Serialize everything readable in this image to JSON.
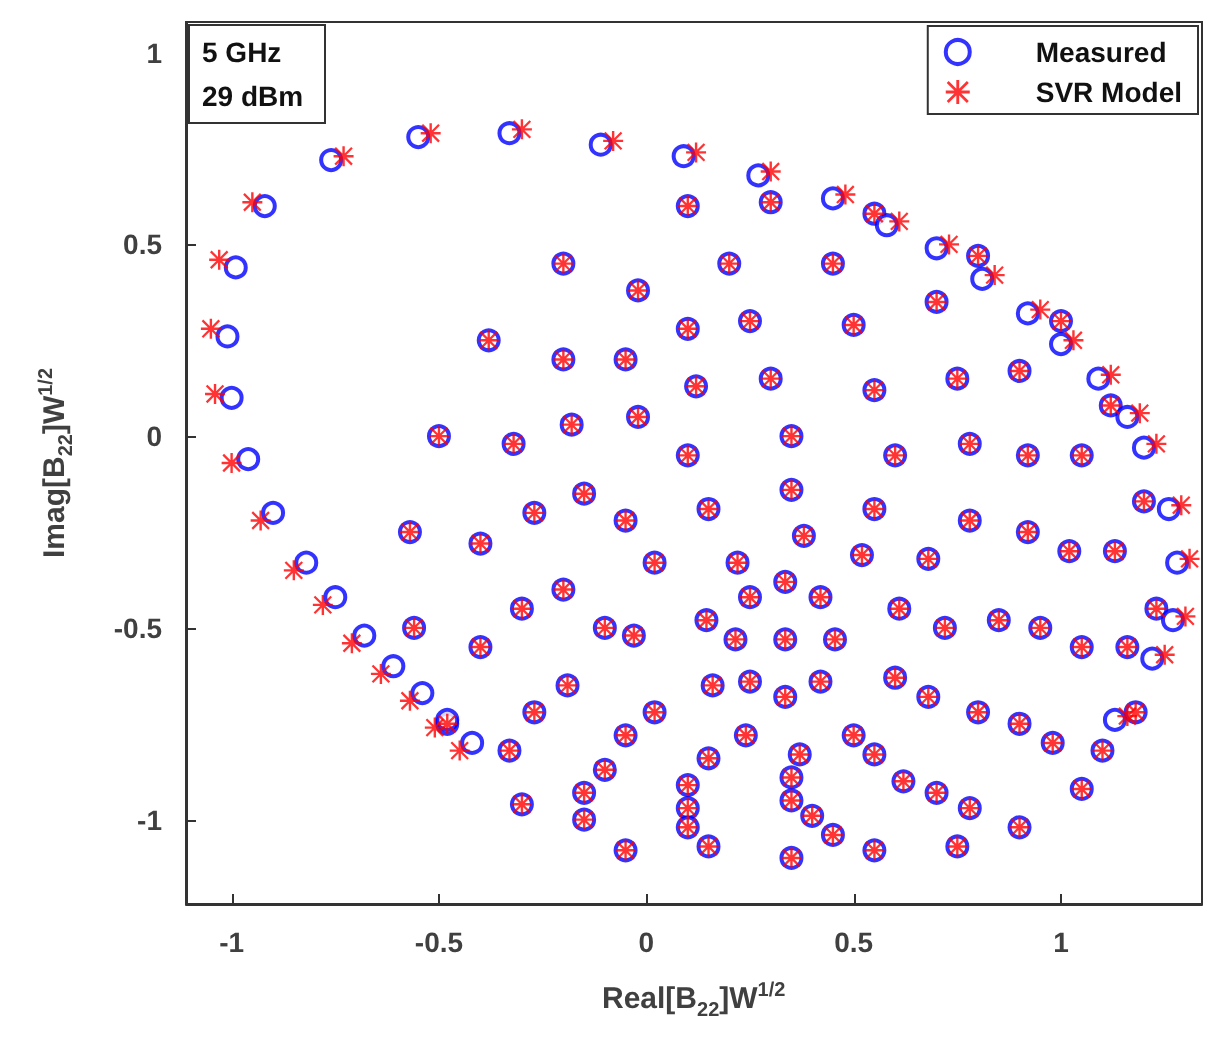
{
  "chart_data": {
    "type": "scatter",
    "xlabel": "Real[B$_{22}$]W$^{1/2}$",
    "ylabel": "Imag[B$_{22}$]W$^{1/2}$",
    "annotations": [
      "5 GHz",
      "29 dBm"
    ],
    "xlim": [
      -1.11,
      1.34
    ],
    "ylim": [
      -1.22,
      1.08
    ],
    "xticks": [
      -1,
      -0.5,
      0,
      0.5,
      1
    ],
    "yticks": [
      -1,
      -0.5,
      0,
      0.5,
      1
    ],
    "grid": false,
    "legend": "top right",
    "series": [
      {
        "name": "Measured",
        "color": "#0000ff",
        "marker": "circle",
        "x": [
          0.335,
          0.335,
          0.42,
          0.455,
          0.42,
          0.335,
          0.25,
          0.215,
          0.25,
          0.38,
          0.52,
          0.61,
          0.6,
          0.5,
          0.37,
          0.24,
          0.16,
          0.145,
          0.22,
          0.35,
          0.55,
          0.68,
          0.72,
          0.68,
          0.55,
          0.35,
          0.15,
          0.02,
          -0.03,
          0.02,
          0.15,
          0.35,
          0.6,
          0.78,
          0.85,
          0.8,
          0.62,
          0.35,
          0.1,
          -0.05,
          -0.1,
          -0.05,
          0.1,
          0.3,
          0.55,
          0.78,
          0.92,
          0.95,
          0.9,
          0.7,
          0.4,
          0.1,
          -0.1,
          -0.19,
          -0.2,
          -0.15,
          -0.02,
          0.12,
          0.25,
          0.5,
          0.75,
          0.92,
          1.02,
          1.05,
          0.98,
          0.78,
          0.45,
          0.1,
          -0.15,
          -0.27,
          -0.3,
          -0.27,
          -0.18,
          -0.05,
          0.1,
          0.2,
          0.45,
          0.7,
          0.9,
          1.05,
          1.13,
          1.16,
          1.1,
          0.9,
          0.55,
          0.15,
          -0.15,
          -0.33,
          -0.4,
          -0.4,
          -0.32,
          -0.2,
          -0.02,
          0.1,
          0.3,
          0.55,
          0.8,
          1.0,
          1.12,
          1.2,
          1.23,
          1.18,
          1.05,
          0.75,
          0.35,
          -0.05,
          -0.3,
          -0.48,
          -0.56,
          -0.57,
          -0.5,
          -0.38,
          -0.2,
          -0.11,
          0.09,
          0.27,
          0.45,
          0.58,
          0.7,
          0.81,
          0.92,
          1.0,
          1.09,
          1.16,
          1.2,
          1.26,
          1.28,
          1.27,
          1.22,
          1.13,
          -0.33,
          -0.55,
          -0.76,
          -0.92,
          -0.99,
          -1.01,
          -1.0,
          -0.96,
          -0.9,
          -0.82,
          -0.75,
          -0.68,
          -0.61,
          -0.54,
          -0.48,
          -0.42
        ],
        "values": [
          -0.53,
          -0.38,
          -0.42,
          -0.53,
          -0.64,
          -0.68,
          -0.64,
          -0.53,
          -0.42,
          -0.26,
          -0.31,
          -0.45,
          -0.63,
          -0.78,
          -0.83,
          -0.78,
          -0.65,
          -0.48,
          -0.33,
          -0.14,
          -0.19,
          -0.32,
          -0.5,
          -0.68,
          -0.83,
          -0.89,
          -0.84,
          -0.72,
          -0.52,
          -0.33,
          -0.19,
          0.0,
          -0.05,
          -0.22,
          -0.48,
          -0.72,
          -0.9,
          -0.95,
          -0.91,
          -0.78,
          -0.5,
          -0.22,
          -0.05,
          0.15,
          0.12,
          -0.02,
          -0.25,
          -0.5,
          -0.75,
          -0.93,
          -0.99,
          -0.97,
          -0.87,
          -0.65,
          -0.4,
          -0.15,
          0.05,
          0.13,
          0.3,
          0.29,
          0.15,
          -0.05,
          -0.3,
          -0.55,
          -0.8,
          -0.97,
          -1.04,
          -1.02,
          -0.93,
          -0.72,
          -0.45,
          -0.2,
          0.03,
          0.2,
          0.28,
          0.45,
          0.45,
          0.35,
          0.17,
          -0.05,
          -0.3,
          -0.55,
          -0.82,
          -1.02,
          -1.08,
          -1.07,
          -1.0,
          -0.82,
          -0.55,
          -0.28,
          -0.02,
          0.2,
          0.38,
          0.6,
          0.61,
          0.58,
          0.47,
          0.3,
          0.08,
          -0.17,
          -0.45,
          -0.72,
          -0.92,
          -1.07,
          -1.1,
          -1.08,
          -0.96,
          -0.75,
          -0.5,
          -0.25,
          0.0,
          0.25,
          0.45,
          0.76,
          0.73,
          0.68,
          0.62,
          0.55,
          0.49,
          0.41,
          0.32,
          0.24,
          0.15,
          0.05,
          -0.03,
          -0.19,
          -0.33,
          -0.48,
          -0.58,
          -0.74,
          0.79,
          0.78,
          0.72,
          0.6,
          0.44,
          0.26,
          0.1,
          -0.06,
          -0.2,
          -0.33,
          -0.42,
          -0.52,
          -0.6,
          -0.67,
          -0.74,
          -0.8
        ]
      },
      {
        "name": "SVR Model",
        "color": "#ff0000",
        "marker": "star",
        "x": [
          0.335,
          0.335,
          0.42,
          0.455,
          0.42,
          0.335,
          0.25,
          0.215,
          0.25,
          0.38,
          0.52,
          0.61,
          0.6,
          0.5,
          0.37,
          0.24,
          0.16,
          0.145,
          0.22,
          0.35,
          0.55,
          0.68,
          0.72,
          0.68,
          0.55,
          0.35,
          0.15,
          0.02,
          -0.03,
          0.02,
          0.15,
          0.35,
          0.6,
          0.78,
          0.85,
          0.8,
          0.62,
          0.35,
          0.1,
          -0.05,
          -0.1,
          -0.05,
          0.1,
          0.3,
          0.55,
          0.78,
          0.92,
          0.95,
          0.9,
          0.7,
          0.4,
          0.1,
          -0.1,
          -0.19,
          -0.2,
          -0.15,
          -0.02,
          0.12,
          0.25,
          0.5,
          0.75,
          0.92,
          1.02,
          1.05,
          0.98,
          0.78,
          0.45,
          0.1,
          -0.15,
          -0.27,
          -0.3,
          -0.27,
          -0.18,
          -0.05,
          0.1,
          0.2,
          0.45,
          0.7,
          0.9,
          1.05,
          1.13,
          1.16,
          1.1,
          0.9,
          0.55,
          0.15,
          -0.15,
          -0.33,
          -0.4,
          -0.4,
          -0.32,
          -0.2,
          -0.02,
          0.1,
          0.3,
          0.55,
          0.8,
          1.0,
          1.12,
          1.2,
          1.23,
          1.18,
          1.05,
          0.75,
          0.35,
          -0.05,
          -0.3,
          -0.48,
          -0.56,
          -0.57,
          -0.5,
          -0.38,
          -0.2,
          -0.08,
          0.12,
          0.3,
          0.48,
          0.61,
          0.73,
          0.84,
          0.95,
          1.03,
          1.12,
          1.19,
          1.23,
          1.29,
          1.31,
          1.3,
          1.25,
          1.16,
          -0.3,
          -0.52,
          -0.73,
          -0.95,
          -1.03,
          -1.05,
          -1.04,
          -1.0,
          -0.93,
          -0.85,
          -0.78,
          -0.71,
          -0.64,
          -0.57,
          -0.51,
          -0.45
        ],
        "values": [
          -0.53,
          -0.38,
          -0.42,
          -0.53,
          -0.64,
          -0.68,
          -0.64,
          -0.53,
          -0.42,
          -0.26,
          -0.31,
          -0.45,
          -0.63,
          -0.78,
          -0.83,
          -0.78,
          -0.65,
          -0.48,
          -0.33,
          -0.14,
          -0.19,
          -0.32,
          -0.5,
          -0.68,
          -0.83,
          -0.89,
          -0.84,
          -0.72,
          -0.52,
          -0.33,
          -0.19,
          0.0,
          -0.05,
          -0.22,
          -0.48,
          -0.72,
          -0.9,
          -0.95,
          -0.91,
          -0.78,
          -0.5,
          -0.22,
          -0.05,
          0.15,
          0.12,
          -0.02,
          -0.25,
          -0.5,
          -0.75,
          -0.93,
          -0.99,
          -0.97,
          -0.87,
          -0.65,
          -0.4,
          -0.15,
          0.05,
          0.13,
          0.3,
          0.29,
          0.15,
          -0.05,
          -0.3,
          -0.55,
          -0.8,
          -0.97,
          -1.04,
          -1.02,
          -0.93,
          -0.72,
          -0.45,
          -0.2,
          0.03,
          0.2,
          0.28,
          0.45,
          0.45,
          0.35,
          0.17,
          -0.05,
          -0.3,
          -0.55,
          -0.82,
          -1.02,
          -1.08,
          -1.07,
          -1.0,
          -0.82,
          -0.55,
          -0.28,
          -0.02,
          0.2,
          0.38,
          0.6,
          0.61,
          0.58,
          0.47,
          0.3,
          0.08,
          -0.17,
          -0.45,
          -0.72,
          -0.92,
          -1.07,
          -1.1,
          -1.08,
          -0.96,
          -0.75,
          -0.5,
          -0.25,
          0.0,
          0.25,
          0.45,
          0.77,
          0.74,
          0.69,
          0.63,
          0.56,
          0.5,
          0.42,
          0.33,
          0.25,
          0.16,
          0.06,
          -0.02,
          -0.18,
          -0.32,
          -0.47,
          -0.57,
          -0.73,
          0.8,
          0.79,
          0.73,
          0.61,
          0.46,
          0.28,
          0.11,
          -0.07,
          -0.22,
          -0.35,
          -0.44,
          -0.54,
          -0.62,
          -0.69,
          -0.76,
          -0.82
        ]
      }
    ]
  }
}
